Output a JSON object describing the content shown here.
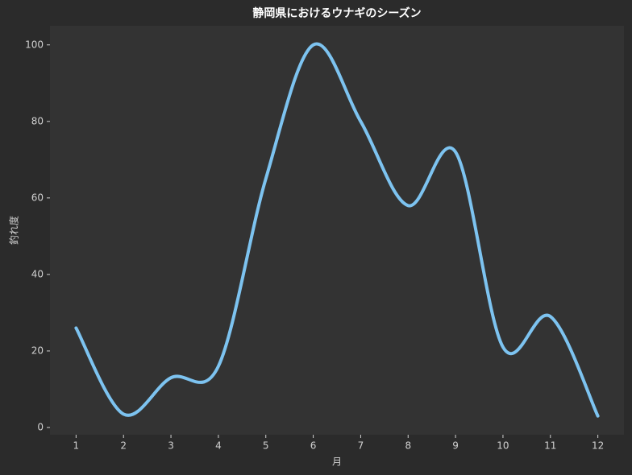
{
  "chart_data": {
    "type": "line",
    "title": "静岡県におけるウナギのシーズン",
    "x_label": "月",
    "y_label": "釣れ度",
    "x": [
      1,
      2,
      3,
      4,
      5,
      6,
      7,
      8,
      9,
      10,
      11,
      12
    ],
    "series": [
      {
        "name": "釣れ度",
        "color": "#7dc3f0",
        "values": [
          26,
          3.5,
          13,
          16,
          65,
          100,
          80,
          58,
          72,
          21,
          29,
          3
        ]
      }
    ],
    "xlim": [
      0.45,
      12.55
    ],
    "ylim": [
      -1.9,
      105
    ],
    "xticks": [
      1,
      2,
      3,
      4,
      5,
      6,
      7,
      8,
      9,
      10,
      11,
      12
    ],
    "yticks": [
      0,
      20,
      40,
      60,
      80,
      100
    ],
    "grid": false
  }
}
